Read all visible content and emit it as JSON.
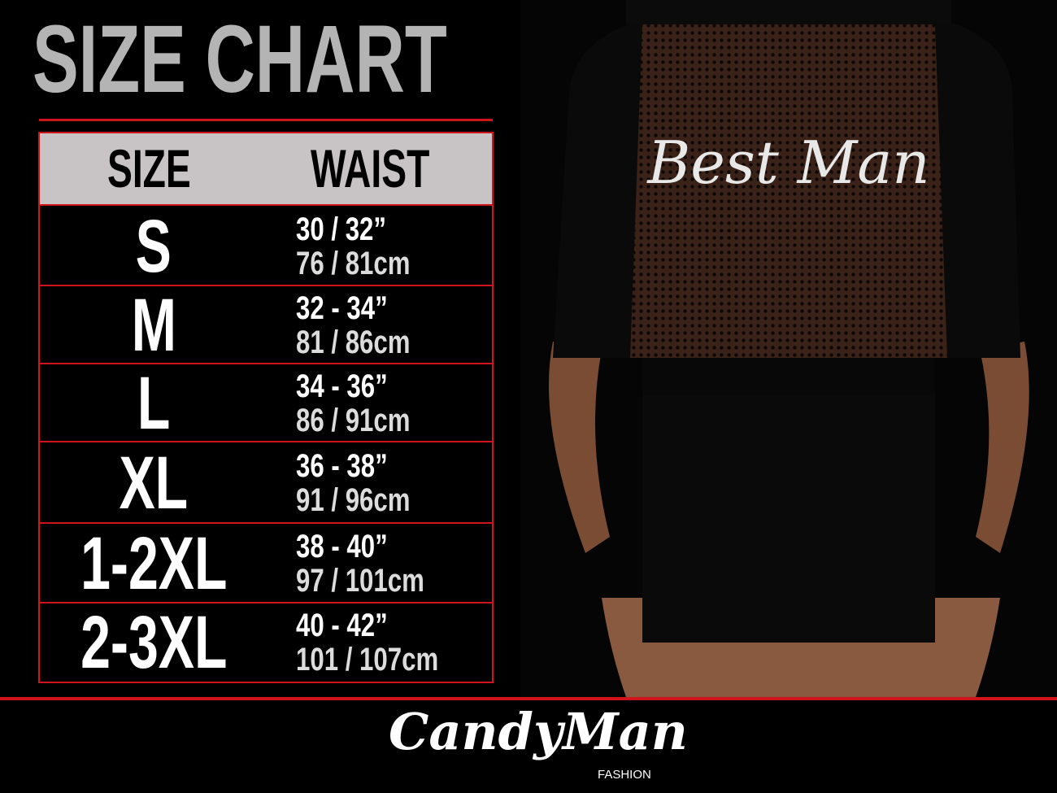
{
  "title": "SIZE CHART",
  "table": {
    "headers": [
      "SIZE",
      "WAIST"
    ],
    "rows": [
      {
        "size": "S",
        "waist_in": "30 / 32”",
        "waist_cm": "76 / 81cm"
      },
      {
        "size": "M",
        "waist_in": "32 - 34”",
        "waist_cm": "81 / 86cm"
      },
      {
        "size": "L",
        "waist_in": "34 - 36”",
        "waist_cm": "86 / 91cm"
      },
      {
        "size": "XL",
        "waist_in": "36 - 38”",
        "waist_cm": "91 / 96cm"
      },
      {
        "size": "1-2XL",
        "waist_in": "38 - 40”",
        "waist_cm": "97 / 101cm"
      },
      {
        "size": "2-3XL",
        "waist_in": "40 - 42”",
        "waist_cm": "101 / 107cm"
      }
    ]
  },
  "product_print": "Best Man",
  "brand": {
    "name": "CandyMan",
    "sub": "FASHION"
  },
  "colors": {
    "accent": "#d0141c",
    "header_bg": "#c8c3c4",
    "title": "#b4b4b4",
    "background": "#000000"
  }
}
